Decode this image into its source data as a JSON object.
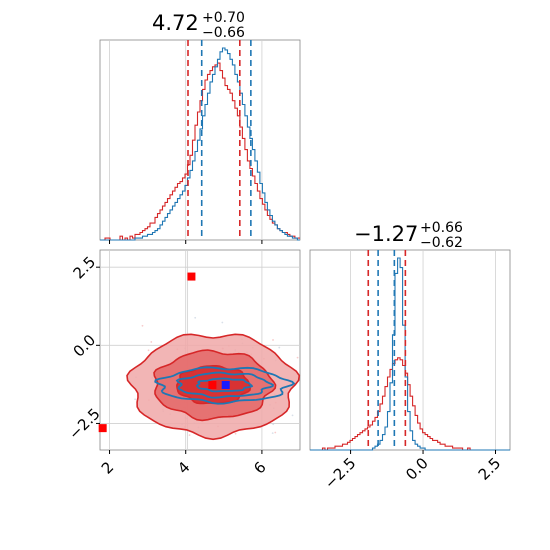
{
  "chart_data": [
    {
      "type": "histogram",
      "panel": "marginal-x",
      "title": {
        "value": "4.72",
        "plus": "+0.70",
        "minus": "−0.66"
      },
      "xlim": [
        1.75,
        7.0
      ],
      "colors": {
        "red": "#d62728",
        "blue": "#1f77b4"
      },
      "vlines": {
        "red": [
          4.06,
          5.42
        ],
        "blue": [
          4.42,
          5.71
        ]
      },
      "bin_edges_start": 1.75,
      "bin_width": 0.0656,
      "series": [
        {
          "name": "",
          "color": "red",
          "counts": [
            0,
            0,
            1,
            1,
            0,
            0,
            0,
            0,
            2,
            0,
            1,
            0,
            2,
            1,
            3,
            3,
            4,
            5,
            6,
            7,
            9,
            9,
            12,
            14,
            16,
            18,
            20,
            22,
            24,
            26,
            28,
            30,
            31,
            33,
            35,
            40,
            45,
            53,
            61,
            68,
            74,
            80,
            85,
            88,
            90,
            92,
            93,
            94,
            90,
            86,
            82,
            80,
            78,
            74,
            70,
            66,
            60,
            54,
            48,
            42,
            38,
            34,
            30,
            26,
            22,
            19,
            16,
            13,
            11,
            9,
            8,
            6,
            5,
            4,
            4,
            3,
            2,
            2,
            1,
            1
          ]
        },
        {
          "name": "",
          "color": "blue",
          "counts": [
            0,
            0,
            0,
            0,
            0,
            0,
            0,
            0,
            0,
            0,
            0,
            0,
            0,
            0,
            1,
            1,
            1,
            2,
            2,
            3,
            3,
            4,
            5,
            6,
            8,
            10,
            12,
            14,
            16,
            18,
            20,
            22,
            24,
            26,
            29,
            33,
            37,
            42,
            47,
            53,
            59,
            66,
            72,
            78,
            84,
            88,
            92,
            96,
            100,
            102,
            101,
            99,
            96,
            93,
            88,
            84,
            78,
            72,
            66,
            60,
            54,
            48,
            42,
            36,
            30,
            25,
            20,
            16,
            13,
            10,
            8,
            6,
            5,
            4,
            3,
            2,
            2,
            1,
            1,
            0
          ]
        }
      ]
    },
    {
      "type": "histogram",
      "panel": "marginal-y",
      "title": {
        "value": "−1.27",
        "plus": "+0.66",
        "minus": "−0.62"
      },
      "xlim": [
        -3.9,
        3.0
      ],
      "xticks": [
        -2.5,
        0.0,
        2.5
      ],
      "xtick_labels": [
        "−2.5",
        "0.0",
        "2.5"
      ],
      "vlines": {
        "red": [
          -1.89,
          -0.61
        ],
        "blue": [
          -1.55,
          -0.99
        ]
      },
      "bin_edges_start": -3.9,
      "bin_width": 0.0863,
      "series": [
        {
          "name": "",
          "color": "red",
          "counts": [
            0,
            0,
            0,
            0,
            0,
            1,
            0,
            1,
            1,
            1,
            2,
            2,
            2,
            3,
            3,
            4,
            5,
            6,
            7,
            8,
            9,
            10,
            11,
            12,
            13,
            15,
            17,
            20,
            24,
            28,
            33,
            38,
            42,
            45,
            47,
            48,
            47,
            44,
            40,
            34,
            28,
            23,
            18,
            14,
            11,
            9,
            8,
            7,
            6,
            5,
            5,
            4,
            3,
            3,
            2,
            2,
            2,
            1,
            1,
            1,
            1,
            0,
            0,
            1,
            0,
            0,
            0,
            0,
            0,
            0,
            0,
            0,
            0,
            0,
            0,
            0,
            0,
            0,
            0,
            0
          ]
        },
        {
          "name": "",
          "color": "blue",
          "counts": [
            0,
            0,
            0,
            0,
            0,
            0,
            0,
            0,
            0,
            0,
            0,
            0,
            0,
            0,
            0,
            0,
            0,
            0,
            0,
            0,
            0,
            0,
            0,
            0,
            0,
            1,
            2,
            3,
            5,
            8,
            12,
            20,
            35,
            60,
            92,
            100,
            95,
            65,
            38,
            20,
            10,
            5,
            3,
            2,
            1,
            1,
            0,
            0,
            0,
            0,
            0,
            0,
            0,
            0,
            0,
            0,
            0,
            0,
            0,
            0,
            0,
            0,
            0,
            0,
            0,
            0,
            0,
            0,
            0,
            0,
            0,
            0,
            0,
            0,
            0,
            0,
            0,
            0,
            0,
            0
          ]
        }
      ]
    },
    {
      "type": "scatter",
      "panel": "joint",
      "xlim": [
        1.75,
        7.0
      ],
      "ylim": [
        -3.35,
        3.05
      ],
      "xticks": [
        2,
        4,
        6
      ],
      "xtick_labels": [
        "2",
        "4",
        "6"
      ],
      "yticks": [
        2.5,
        0.0,
        -2.5
      ],
      "ytick_labels": [
        "2.5",
        "0.0",
        "−2.5"
      ],
      "grid": true,
      "gridlines": {
        "x": [
          4.05
        ],
        "y": [
          2.5,
          0.0,
          -2.5
        ]
      },
      "red_contours": [
        {
          "level": "outer",
          "cx": 4.72,
          "cy": -1.27,
          "rx": 2.15,
          "ry": 1.62
        },
        {
          "level": "middle",
          "cx": 4.72,
          "cy": -1.27,
          "rx": 1.55,
          "ry": 1.08
        },
        {
          "level": "inner",
          "cx": 4.72,
          "cy": -1.27,
          "rx": 0.95,
          "ry": 0.6
        }
      ],
      "blue_contours": [
        {
          "level": "outer",
          "cx": 5.0,
          "cy": -1.27,
          "rx": 1.7,
          "ry": 0.55
        },
        {
          "level": "middle",
          "cx": 5.0,
          "cy": -1.27,
          "rx": 1.2,
          "ry": 0.38
        },
        {
          "level": "inner",
          "cx": 5.0,
          "cy": -1.27,
          "rx": 0.7,
          "ry": 0.2
        }
      ],
      "markers": [
        {
          "x": 4.15,
          "y": 2.2,
          "color": "red"
        },
        {
          "x": 1.82,
          "y": -2.65,
          "color": "red"
        },
        {
          "x": 4.7,
          "y": -1.27,
          "color": "red"
        },
        {
          "x": 5.05,
          "y": -1.27,
          "color": "blue"
        }
      ]
    }
  ]
}
